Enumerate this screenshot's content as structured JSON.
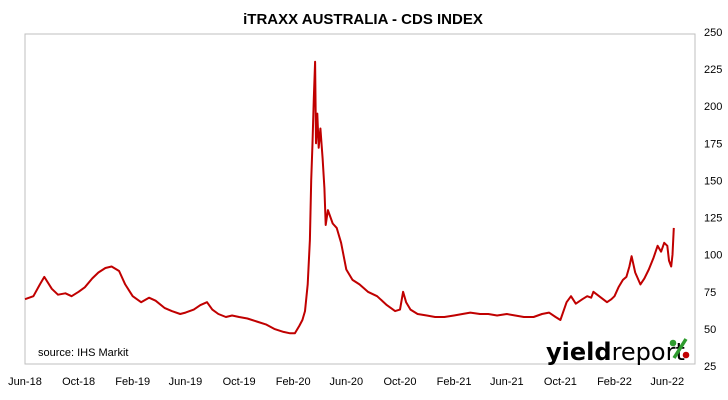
{
  "chart_data": {
    "type": "line",
    "title": "iTRAXX AUSTRALIA - CDS INDEX",
    "xlabel": "",
    "ylabel": "",
    "ylim": [
      25,
      250
    ],
    "y_ticks": [
      25,
      50,
      75,
      100,
      125,
      150,
      175,
      200,
      225,
      250
    ],
    "y_axis_position": "right",
    "x_tick_labels": [
      "Jun-18",
      "Oct-18",
      "Feb-19",
      "Jun-19",
      "Oct-19",
      "Feb-20",
      "Jun-20",
      "Oct-20",
      "Feb-21",
      "Jun-21",
      "Oct-21",
      "Feb-22",
      "Jun-22"
    ],
    "x_tick_dates": [
      "2018-06-01",
      "2018-10-01",
      "2019-02-01",
      "2019-06-01",
      "2019-10-01",
      "2020-02-01",
      "2020-06-01",
      "2020-10-01",
      "2021-02-01",
      "2021-06-01",
      "2021-10-01",
      "2022-02-01",
      "2022-06-01"
    ],
    "xlim": [
      "2018-06-01",
      "2022-06-30"
    ],
    "grid": "none",
    "legend": "none",
    "series": [
      {
        "color": "#c00000",
        "points": [
          [
            "2018-06-01",
            70
          ],
          [
            "2018-06-20",
            72
          ],
          [
            "2018-07-05",
            80
          ],
          [
            "2018-07-15",
            85
          ],
          [
            "2018-08-01",
            77
          ],
          [
            "2018-08-15",
            73
          ],
          [
            "2018-09-01",
            74
          ],
          [
            "2018-09-15",
            72
          ],
          [
            "2018-10-01",
            75
          ],
          [
            "2018-10-15",
            78
          ],
          [
            "2018-11-01",
            84
          ],
          [
            "2018-11-15",
            88
          ],
          [
            "2018-12-01",
            91
          ],
          [
            "2018-12-15",
            92
          ],
          [
            "2019-01-01",
            89
          ],
          [
            "2019-01-15",
            80
          ],
          [
            "2019-02-01",
            72
          ],
          [
            "2019-02-20",
            68
          ],
          [
            "2019-03-10",
            71
          ],
          [
            "2019-03-25",
            69
          ],
          [
            "2019-04-15",
            64
          ],
          [
            "2019-05-01",
            62
          ],
          [
            "2019-05-20",
            60
          ],
          [
            "2019-06-01",
            61
          ],
          [
            "2019-06-20",
            63
          ],
          [
            "2019-07-05",
            66
          ],
          [
            "2019-07-20",
            68
          ],
          [
            "2019-08-01",
            63
          ],
          [
            "2019-08-15",
            60
          ],
          [
            "2019-09-01",
            58
          ],
          [
            "2019-09-15",
            59
          ],
          [
            "2019-10-01",
            58
          ],
          [
            "2019-10-20",
            57
          ],
          [
            "2019-11-10",
            55
          ],
          [
            "2019-12-01",
            53
          ],
          [
            "2019-12-20",
            50
          ],
          [
            "2020-01-10",
            48
          ],
          [
            "2020-01-25",
            47
          ],
          [
            "2020-02-05",
            47
          ],
          [
            "2020-02-15",
            52
          ],
          [
            "2020-02-22",
            56
          ],
          [
            "2020-02-28",
            62
          ],
          [
            "2020-03-05",
            80
          ],
          [
            "2020-03-10",
            110
          ],
          [
            "2020-03-13",
            150
          ],
          [
            "2020-03-16",
            175
          ],
          [
            "2020-03-19",
            205
          ],
          [
            "2020-03-22",
            230
          ],
          [
            "2020-03-24",
            175
          ],
          [
            "2020-03-27",
            195
          ],
          [
            "2020-03-30",
            172
          ],
          [
            "2020-04-03",
            185
          ],
          [
            "2020-04-08",
            165
          ],
          [
            "2020-04-12",
            145
          ],
          [
            "2020-04-15",
            120
          ],
          [
            "2020-04-20",
            130
          ],
          [
            "2020-05-01",
            121
          ],
          [
            "2020-05-10",
            118
          ],
          [
            "2020-05-20",
            108
          ],
          [
            "2020-06-01",
            90
          ],
          [
            "2020-06-15",
            83
          ],
          [
            "2020-07-01",
            80
          ],
          [
            "2020-07-20",
            75
          ],
          [
            "2020-08-10",
            72
          ],
          [
            "2020-09-01",
            66
          ],
          [
            "2020-09-20",
            62
          ],
          [
            "2020-10-01",
            63
          ],
          [
            "2020-10-08",
            75
          ],
          [
            "2020-10-15",
            68
          ],
          [
            "2020-10-25",
            63
          ],
          [
            "2020-11-10",
            60
          ],
          [
            "2020-12-01",
            59
          ],
          [
            "2020-12-20",
            58
          ],
          [
            "2021-01-10",
            58
          ],
          [
            "2021-02-01",
            59
          ],
          [
            "2021-02-20",
            60
          ],
          [
            "2021-03-10",
            61
          ],
          [
            "2021-04-01",
            60
          ],
          [
            "2021-04-20",
            60
          ],
          [
            "2021-05-10",
            59
          ],
          [
            "2021-06-01",
            60
          ],
          [
            "2021-06-20",
            59
          ],
          [
            "2021-07-10",
            58
          ],
          [
            "2021-08-01",
            58
          ],
          [
            "2021-08-20",
            60
          ],
          [
            "2021-09-05",
            61
          ],
          [
            "2021-09-20",
            58
          ],
          [
            "2021-10-01",
            56
          ],
          [
            "2021-10-15",
            68
          ],
          [
            "2021-10-25",
            72
          ],
          [
            "2021-11-05",
            67
          ],
          [
            "2021-11-20",
            70
          ],
          [
            "2021-12-01",
            72
          ],
          [
            "2021-12-10",
            71
          ],
          [
            "2021-12-15",
            75
          ],
          [
            "2022-01-15",
            68
          ],
          [
            "2022-01-25",
            70
          ],
          [
            "2022-02-01",
            72
          ],
          [
            "2022-02-10",
            78
          ],
          [
            "2022-02-20",
            83
          ],
          [
            "2022-02-28",
            85
          ],
          [
            "2022-03-07",
            92
          ],
          [
            "2022-03-12",
            99
          ],
          [
            "2022-03-20",
            88
          ],
          [
            "2022-04-01",
            80
          ],
          [
            "2022-04-10",
            84
          ],
          [
            "2022-04-20",
            90
          ],
          [
            "2022-05-01",
            98
          ],
          [
            "2022-05-10",
            106
          ],
          [
            "2022-05-18",
            102
          ],
          [
            "2022-05-25",
            108
          ],
          [
            "2022-06-01",
            106
          ],
          [
            "2022-06-05",
            96
          ],
          [
            "2022-06-10",
            92
          ],
          [
            "2022-06-13",
            100
          ],
          [
            "2022-06-16",
            118
          ]
        ]
      }
    ],
    "annotations": [
      "source: IHS Markit"
    ]
  },
  "logo": {
    "part1": "yield",
    "part2": "report",
    "symbol": "%"
  },
  "colors": {
    "line": "#c00000",
    "logo_green": "#2e9b2e",
    "logo_red": "#c00000",
    "frame": "#bfbfbf",
    "text": "#000000"
  }
}
